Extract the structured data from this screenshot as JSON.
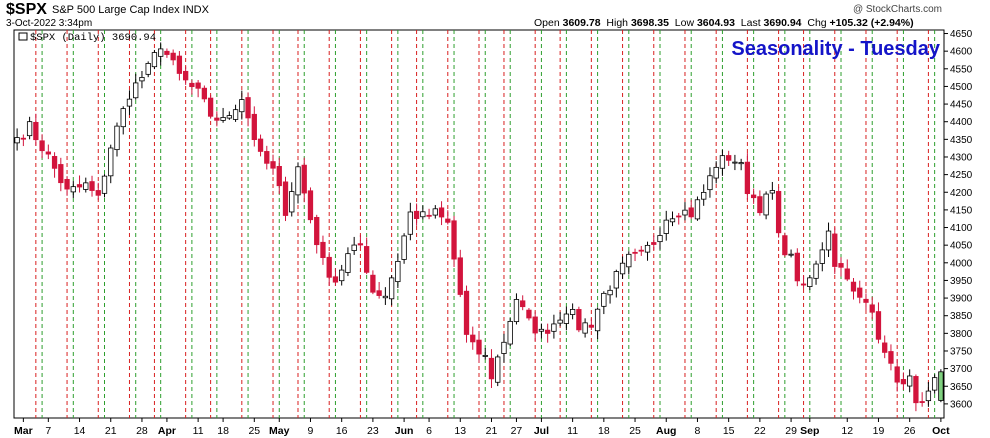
{
  "header": {
    "symbol": "$SPX",
    "description": "S&P 500 Large Cap Index  INDX",
    "date": "3-Oct-2022 3:34pm",
    "ohlc": {
      "open_label": "Open",
      "open": "3609.78",
      "high_label": "High",
      "high": "3698.35",
      "low_label": "Low",
      "low": "3604.93",
      "last_label": "Last",
      "last": "3690.94",
      "chg_label": "Chg",
      "chg": "+105.32 (+2.94%)"
    },
    "watermark": "@ StockCharts.com"
  },
  "colors": {
    "up": "#ffffff",
    "down": "#d2143c",
    "last_up": "#7fd07f",
    "title": "#1414c8",
    "grid_green": "#2e9e2e",
    "grid_red": "#d82020"
  },
  "chart_data": {
    "type": "candlestick",
    "title": "Seasonality - Tuesday",
    "legend": "$SPX (Daily) 3690.94",
    "ylim": [
      3560,
      4660
    ],
    "yticks": [
      3600,
      3650,
      3700,
      3750,
      3800,
      3850,
      3900,
      3950,
      4000,
      4050,
      4100,
      4150,
      4200,
      4250,
      4300,
      4350,
      4400,
      4450,
      4500,
      4550,
      4600,
      4650
    ],
    "xticks": [
      {
        "label": "Mar",
        "index": 1,
        "month": true
      },
      {
        "label": "7",
        "index": 5
      },
      {
        "label": "14",
        "index": 10
      },
      {
        "label": "21",
        "index": 15
      },
      {
        "label": "28",
        "index": 20
      },
      {
        "label": "Apr",
        "index": 24,
        "month": true
      },
      {
        "label": "11",
        "index": 29
      },
      {
        "label": "18",
        "index": 33
      },
      {
        "label": "25",
        "index": 38
      },
      {
        "label": "May",
        "index": 42,
        "month": true
      },
      {
        "label": "9",
        "index": 47
      },
      {
        "label": "16",
        "index": 52
      },
      {
        "label": "23",
        "index": 57
      },
      {
        "label": "Jun",
        "index": 62,
        "month": true
      },
      {
        "label": "6",
        "index": 66
      },
      {
        "label": "13",
        "index": 71
      },
      {
        "label": "21",
        "index": 76
      },
      {
        "label": "27",
        "index": 80
      },
      {
        "label": "Jul",
        "index": 84,
        "month": true
      },
      {
        "label": "11",
        "index": 89
      },
      {
        "label": "18",
        "index": 94
      },
      {
        "label": "25",
        "index": 99
      },
      {
        "label": "Aug",
        "index": 104,
        "month": true
      },
      {
        "label": "8",
        "index": 109
      },
      {
        "label": "15",
        "index": 114
      },
      {
        "label": "22",
        "index": 119
      },
      {
        "label": "29",
        "index": 124
      },
      {
        "label": "Sep",
        "index": 127,
        "month": true
      },
      {
        "label": "12",
        "index": 133
      },
      {
        "label": "19",
        "index": 138
      },
      {
        "label": "26",
        "index": 143
      },
      {
        "label": "Oct",
        "index": 148,
        "month": true
      }
    ],
    "tuesday_lines": [
      4,
      9,
      14,
      19,
      23,
      28,
      32,
      37,
      42,
      46,
      51,
      56,
      61,
      65,
      70,
      75,
      79,
      84,
      88,
      93,
      98,
      103,
      108,
      113,
      118,
      123,
      127,
      132,
      137,
      142,
      147
    ],
    "anchors": [
      [
        0,
        4355
      ],
      [
        2,
        4385
      ],
      [
        5,
        4300
      ],
      [
        8,
        4200
      ],
      [
        11,
        4220
      ],
      [
        13,
        4180
      ],
      [
        15,
        4330
      ],
      [
        18,
        4480
      ],
      [
        21,
        4550
      ],
      [
        23,
        4620
      ],
      [
        26,
        4530
      ],
      [
        29,
        4480
      ],
      [
        31,
        4420
      ],
      [
        33,
        4400
      ],
      [
        36,
        4470
      ],
      [
        39,
        4300
      ],
      [
        41,
        4260
      ],
      [
        43,
        4150
      ],
      [
        45,
        4270
      ],
      [
        47,
        4125
      ],
      [
        49,
        4000
      ],
      [
        51,
        3950
      ],
      [
        53,
        4020
      ],
      [
        55,
        4050
      ],
      [
        57,
        3920
      ],
      [
        59,
        3910
      ],
      [
        61,
        4010
      ],
      [
        63,
        4140
      ],
      [
        65,
        4130
      ],
      [
        67,
        4140
      ],
      [
        69,
        4110
      ],
      [
        71,
        3910
      ],
      [
        72,
        3790
      ],
      [
        73,
        3760
      ],
      [
        75,
        3730
      ],
      [
        76,
        3680
      ],
      [
        78,
        3780
      ],
      [
        80,
        3900
      ],
      [
        82,
        3830
      ],
      [
        84,
        3800
      ],
      [
        86,
        3830
      ],
      [
        88,
        3870
      ],
      [
        89,
        3850
      ],
      [
        90,
        3820
      ],
      [
        92,
        3830
      ],
      [
        94,
        3910
      ],
      [
        96,
        3960
      ],
      [
        98,
        4010
      ],
      [
        100,
        4020
      ],
      [
        102,
        4060
      ],
      [
        104,
        4130
      ],
      [
        106,
        4150
      ],
      [
        108,
        4140
      ],
      [
        110,
        4200
      ],
      [
        112,
        4280
      ],
      [
        114,
        4300
      ],
      [
        115,
        4290
      ],
      [
        116,
        4270
      ],
      [
        117,
        4210
      ],
      [
        119,
        4160
      ],
      [
        121,
        4200
      ],
      [
        122,
        4070
      ],
      [
        124,
        4010
      ],
      [
        125,
        3960
      ],
      [
        126,
        3920
      ],
      [
        128,
        3990
      ],
      [
        130,
        4100
      ],
      [
        131,
        4000
      ],
      [
        133,
        3970
      ],
      [
        134,
        3910
      ],
      [
        136,
        3880
      ],
      [
        137,
        3860
      ],
      [
        138,
        3800
      ],
      [
        139,
        3760
      ],
      [
        140,
        3700
      ],
      [
        142,
        3650
      ],
      [
        143,
        3665
      ],
      [
        144,
        3620
      ],
      [
        145,
        3590
      ],
      [
        148,
        3690
      ]
    ],
    "last_candle": {
      "open": 3609.78,
      "high": 3698.35,
      "low": 3604.93,
      "close": 3690.94
    }
  }
}
